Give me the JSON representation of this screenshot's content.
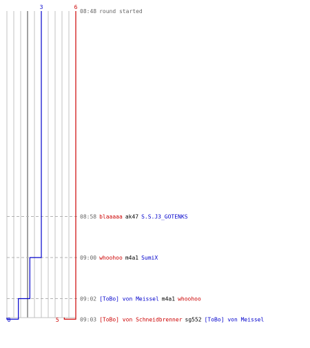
{
  "chart_data": {
    "type": "line",
    "title": "",
    "xlabel": "",
    "ylabel": "",
    "colors": {
      "team_blue": "#0000cc",
      "team_red": "#cc0000",
      "kill_weapon": "#000000",
      "time": "#666666",
      "note": "#666666",
      "grid": "#c0c0c0",
      "grid_mid": "#808080",
      "dash": "#b0b0b0"
    },
    "series": [
      {
        "team": "blue",
        "start_label": "3",
        "end_label": "0",
        "values": [
          3,
          2,
          1,
          0
        ]
      },
      {
        "team": "red",
        "start_label": "6",
        "end_label": "5",
        "values": [
          6,
          6,
          6,
          5
        ]
      }
    ],
    "events": [
      {
        "time": "08:48",
        "type": "note",
        "text": "round started"
      },
      {
        "time": "08:58",
        "type": "kill",
        "killer": "blaaaaa",
        "killer_team": "red",
        "weapon": "ak47",
        "victim": "S.S.J3_GOTENKS",
        "victim_team": "blue"
      },
      {
        "time": "09:00",
        "type": "kill",
        "killer": "whoohoo",
        "killer_team": "red",
        "weapon": "m4a1",
        "victim": "SumiX",
        "victim_team": "blue"
      },
      {
        "time": "09:02",
        "type": "kill",
        "killer": "[ToBo] von Meissel",
        "killer_team": "blue",
        "weapon": "m4a1",
        "victim": "whoohoo",
        "victim_team": "red"
      },
      {
        "time": "09:03",
        "type": "kill",
        "killer": "[ToBo] von Schneidbrenner",
        "killer_team": "red",
        "weapon": "sg552",
        "victim": "[ToBo] von Meissel",
        "victim_team": "blue"
      }
    ]
  }
}
